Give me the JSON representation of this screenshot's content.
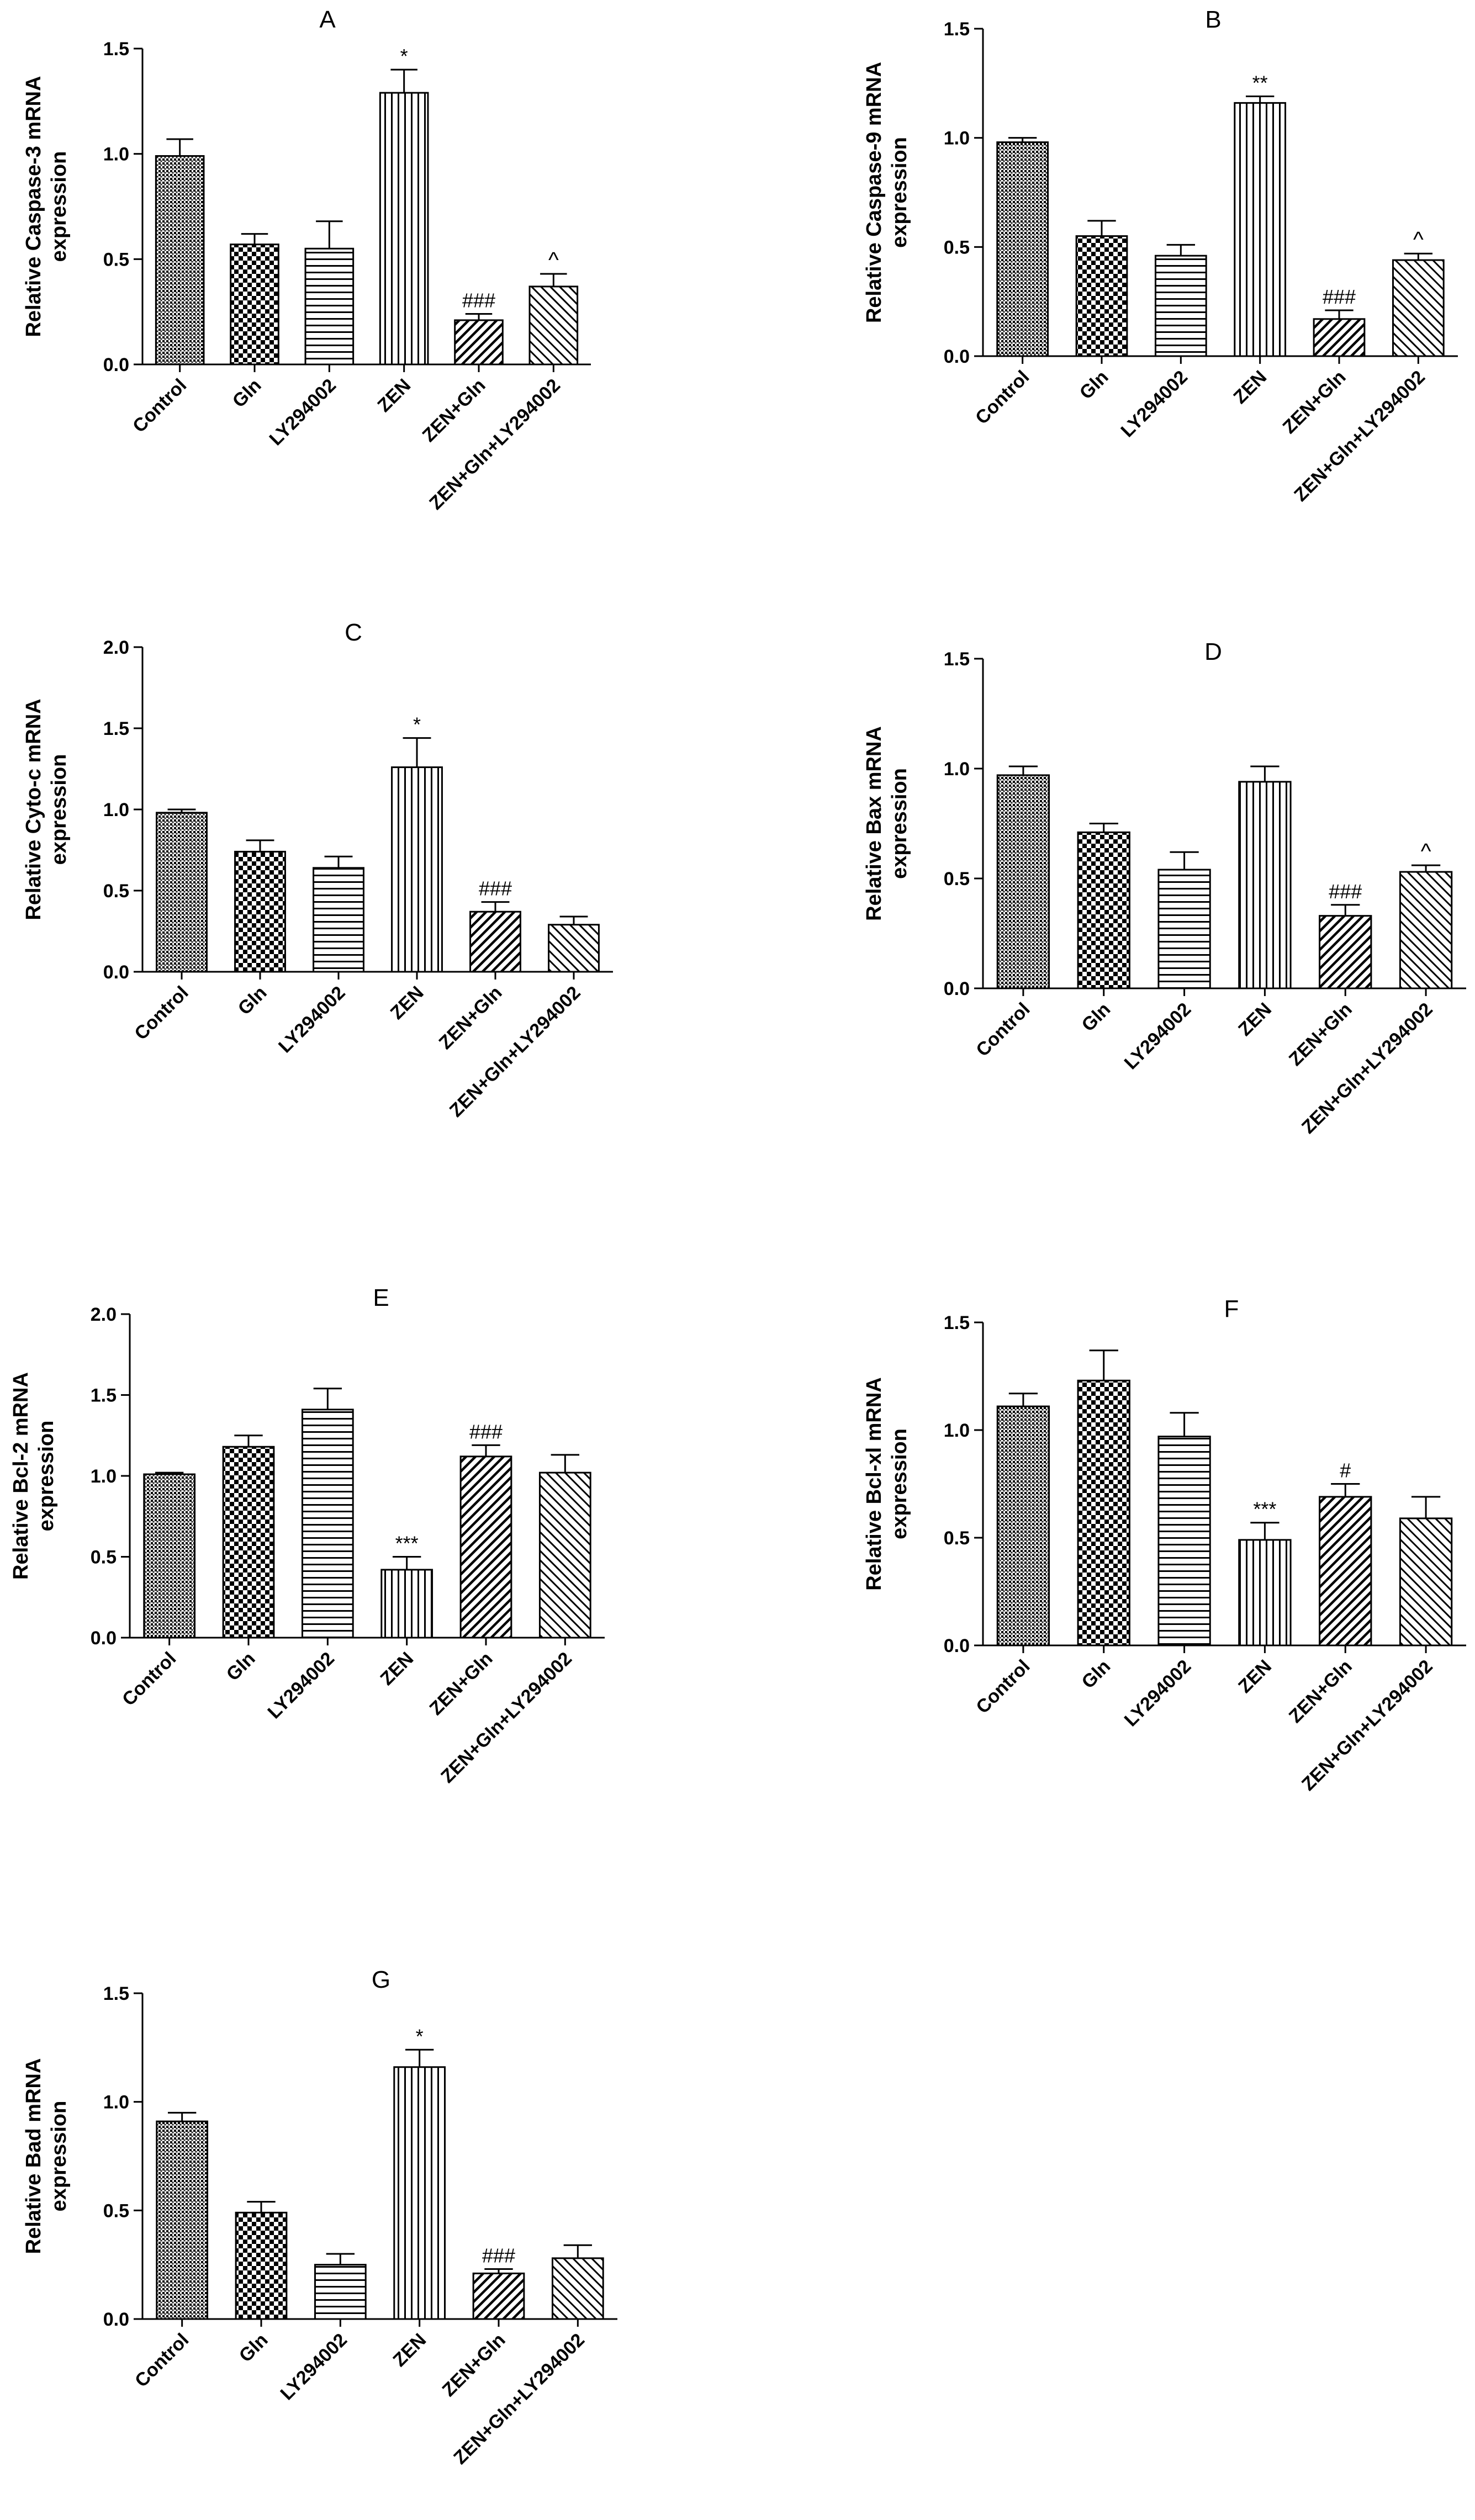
{
  "chart_data": [
    {
      "panel": "A",
      "type": "bar",
      "title": "A",
      "ylabel": [
        "Relative Caspase-3 mRNA",
        "expression"
      ],
      "categories": [
        "Control",
        "Gln",
        "LY294002",
        "ZEN",
        "ZEN+Gln",
        "ZEN+Gln+LY294002"
      ],
      "values": [
        0.99,
        0.57,
        0.55,
        1.29,
        0.21,
        0.37
      ],
      "errors": [
        0.08,
        0.05,
        0.13,
        0.11,
        0.03,
        0.06
      ],
      "annotations": [
        "",
        "",
        "",
        "*",
        "###",
        "^"
      ],
      "ylim": [
        0,
        1.5
      ],
      "yticks": [
        0.0,
        0.5,
        1.0,
        1.5
      ],
      "ytick_labels": [
        "0.0",
        "0.5",
        "1.0",
        "1.5"
      ]
    },
    {
      "panel": "B",
      "type": "bar",
      "title": "B",
      "ylabel": [
        "Relative Caspase-9 mRNA",
        "expression"
      ],
      "categories": [
        "Control",
        "Gln",
        "LY294002",
        "ZEN",
        "ZEN+Gln",
        "ZEN+Gln+LY294002"
      ],
      "values": [
        0.98,
        0.55,
        0.46,
        1.16,
        0.17,
        0.44
      ],
      "errors": [
        0.02,
        0.07,
        0.05,
        0.03,
        0.04,
        0.03
      ],
      "annotations": [
        "",
        "",
        "",
        "**",
        "###",
        "^"
      ],
      "ylim": [
        0,
        1.5
      ],
      "yticks": [
        0.0,
        0.5,
        1.0,
        1.5
      ],
      "ytick_labels": [
        "0.0",
        "0.5",
        "1.0",
        "1.5"
      ]
    },
    {
      "panel": "C",
      "type": "bar",
      "title": "C",
      "ylabel": [
        "Relative Cyto-c mRNA",
        "expression"
      ],
      "categories": [
        "Control",
        "Gln",
        "LY294002",
        "ZEN",
        "ZEN+Gln",
        "ZEN+Gln+LY294002"
      ],
      "values": [
        0.98,
        0.74,
        0.64,
        1.26,
        0.37,
        0.29
      ],
      "errors": [
        0.02,
        0.07,
        0.07,
        0.18,
        0.06,
        0.05
      ],
      "annotations": [
        "",
        "",
        "",
        "*",
        "###",
        ""
      ],
      "ylim": [
        0,
        2.0
      ],
      "yticks": [
        0.0,
        0.5,
        1.0,
        1.5,
        2.0
      ],
      "ytick_labels": [
        "0.0",
        "0.5",
        "1.0",
        "1.5",
        "2.0"
      ]
    },
    {
      "panel": "D",
      "type": "bar",
      "title": "D",
      "ylabel": [
        "Relative Bax mRNA",
        "expression"
      ],
      "categories": [
        "Control",
        "Gln",
        "LY294002",
        "ZEN",
        "ZEN+Gln",
        "ZEN+Gln+LY294002"
      ],
      "values": [
        0.97,
        0.71,
        0.54,
        0.94,
        0.33,
        0.53
      ],
      "errors": [
        0.04,
        0.04,
        0.08,
        0.07,
        0.05,
        0.03
      ],
      "annotations": [
        "",
        "",
        "",
        "",
        "###",
        "^"
      ],
      "ylim": [
        0,
        1.5
      ],
      "yticks": [
        0.0,
        0.5,
        1.0,
        1.5
      ],
      "ytick_labels": [
        "0.0",
        "0.5",
        "1.0",
        "1.5"
      ]
    },
    {
      "panel": "E",
      "type": "bar",
      "title": "E",
      "ylabel": [
        "Relative Bcl-2 mRNA",
        "expression"
      ],
      "categories": [
        "Control",
        "Gln",
        "LY294002",
        "ZEN",
        "ZEN+Gln",
        "ZEN+Gln+LY294002"
      ],
      "values": [
        1.01,
        1.18,
        1.41,
        0.42,
        1.12,
        1.02
      ],
      "errors": [
        0.01,
        0.07,
        0.13,
        0.08,
        0.07,
        0.11
      ],
      "annotations": [
        "",
        "",
        "",
        "***",
        "###",
        ""
      ],
      "ylim": [
        0,
        2.0
      ],
      "yticks": [
        0.0,
        0.5,
        1.0,
        1.5,
        2.0
      ],
      "ytick_labels": [
        "0.0",
        "0.5",
        "1.0",
        "1.5",
        "2.0"
      ]
    },
    {
      "panel": "F",
      "type": "bar",
      "title": "F",
      "ylabel": [
        "Relative Bcl-xl mRNA",
        "expression"
      ],
      "categories": [
        "Control",
        "Gln",
        "LY294002",
        "ZEN",
        "ZEN+Gln",
        "ZEN+Gln+LY294002"
      ],
      "values": [
        1.11,
        1.23,
        0.97,
        0.49,
        0.69,
        0.59
      ],
      "errors": [
        0.06,
        0.14,
        0.11,
        0.08,
        0.06,
        0.1
      ],
      "annotations": [
        "",
        "",
        "",
        "***",
        "#",
        ""
      ],
      "ylim": [
        0,
        1.5
      ],
      "yticks": [
        0.0,
        0.5,
        1.0,
        1.5
      ],
      "ytick_labels": [
        "0.0",
        "0.5",
        "1.0",
        "1.5"
      ]
    },
    {
      "panel": "G",
      "type": "bar",
      "title": "G",
      "ylabel": [
        "Relative Bad mRNA",
        "expression"
      ],
      "categories": [
        "Control",
        "Gln",
        "LY294002",
        "ZEN",
        "ZEN+Gln",
        "ZEN+Gln+LY294002"
      ],
      "values": [
        0.91,
        0.49,
        0.25,
        1.16,
        0.21,
        0.28
      ],
      "errors": [
        0.04,
        0.05,
        0.05,
        0.08,
        0.02,
        0.06
      ],
      "annotations": [
        "",
        "",
        "",
        "*",
        "###",
        ""
      ],
      "ylim": [
        0,
        1.5
      ],
      "yticks": [
        0.0,
        0.5,
        1.0,
        1.5
      ],
      "ytick_labels": [
        "0.0",
        "0.5",
        "1.0",
        "1.5"
      ]
    }
  ],
  "bar_patterns": [
    "dense-dots",
    "checker",
    "horizontal-lines",
    "vertical-lines",
    "diagonal-down",
    "diagonal-up"
  ]
}
